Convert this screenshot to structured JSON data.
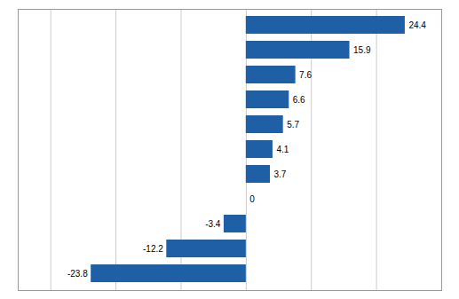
{
  "chart_data": {
    "type": "bar",
    "orientation": "horizontal",
    "categories": [
      null,
      null,
      null,
      null,
      null,
      null,
      null,
      null,
      null,
      null,
      null
    ],
    "values": [
      24.4,
      15.9,
      7.6,
      6.6,
      5.7,
      4.1,
      3.7,
      0,
      -3.4,
      -12.2,
      -23.8
    ],
    "color": "#1F5FA6",
    "xlim": [
      -35,
      30
    ],
    "xticks": [
      -30,
      -20,
      -10,
      0,
      10,
      20,
      30
    ],
    "grid": true,
    "data_labels": true,
    "tick_labels": false
  }
}
